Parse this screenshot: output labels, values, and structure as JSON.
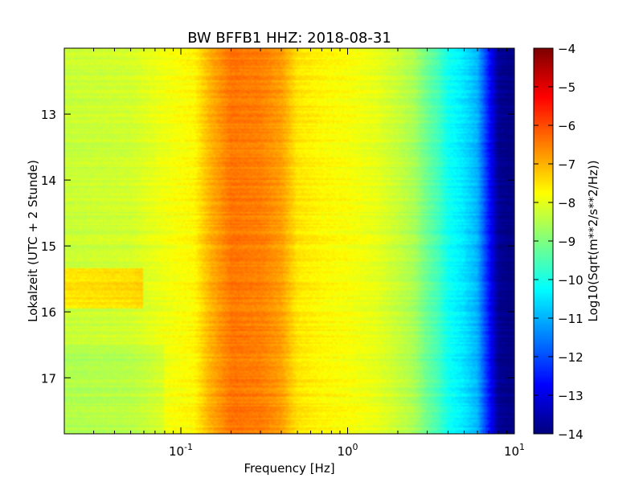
{
  "chart_data": {
    "type": "heatmap",
    "title": "BW BFFB1 HHZ: 2018-08-31",
    "xlabel": "Frequency [Hz]",
    "ylabel": "Lokalzeit (UTC + 2 Stunde)",
    "x_scale": "log",
    "xlim": [
      0.02,
      10
    ],
    "ylim": [
      12.0,
      17.85
    ],
    "y_inverted": true,
    "x_ticks": [
      {
        "value": 0.1,
        "base": "10",
        "exp": "-1"
      },
      {
        "value": 1,
        "base": "10",
        "exp": "0"
      },
      {
        "value": 10,
        "base": "10",
        "exp": "1"
      }
    ],
    "y_ticks": [
      {
        "value": 13,
        "label": "13"
      },
      {
        "value": 14,
        "label": "14"
      },
      {
        "value": 15,
        "label": "15"
      },
      {
        "value": 16,
        "label": "16"
      },
      {
        "value": 17,
        "label": "17"
      }
    ],
    "colorbar": {
      "label": "Log10(Sqrt(m**2/s**2/Hz))",
      "colormap": "jet",
      "min": -14,
      "max": -4,
      "ticks": [
        {
          "value": -4,
          "label": "−4"
        },
        {
          "value": -5,
          "label": "−5"
        },
        {
          "value": -6,
          "label": "−6"
        },
        {
          "value": -7,
          "label": "−7"
        },
        {
          "value": -8,
          "label": "−8"
        },
        {
          "value": -9,
          "label": "−9"
        },
        {
          "value": -10,
          "label": "−10"
        },
        {
          "value": -11,
          "label": "−11"
        },
        {
          "value": -12,
          "label": "−12"
        },
        {
          "value": -13,
          "label": "−13"
        },
        {
          "value": -14,
          "label": "−14"
        }
      ]
    },
    "spectrum_profile": {
      "frequency_hz": [
        0.02,
        0.05,
        0.08,
        0.12,
        0.15,
        0.2,
        0.3,
        0.4,
        0.5,
        0.7,
        1.0,
        1.5,
        2.0,
        2.5,
        3.0,
        3.5,
        4.0,
        5.0,
        6.0,
        7.0,
        8.0,
        10.0
      ],
      "log10_amplitude": [
        -8.3,
        -8.2,
        -7.9,
        -7.7,
        -7.0,
        -6.4,
        -6.5,
        -6.8,
        -7.5,
        -7.7,
        -7.8,
        -8.0,
        -8.3,
        -8.6,
        -9.2,
        -9.6,
        -10.1,
        -10.5,
        -11.0,
        -12.5,
        -13.8,
        -14.0
      ]
    }
  }
}
